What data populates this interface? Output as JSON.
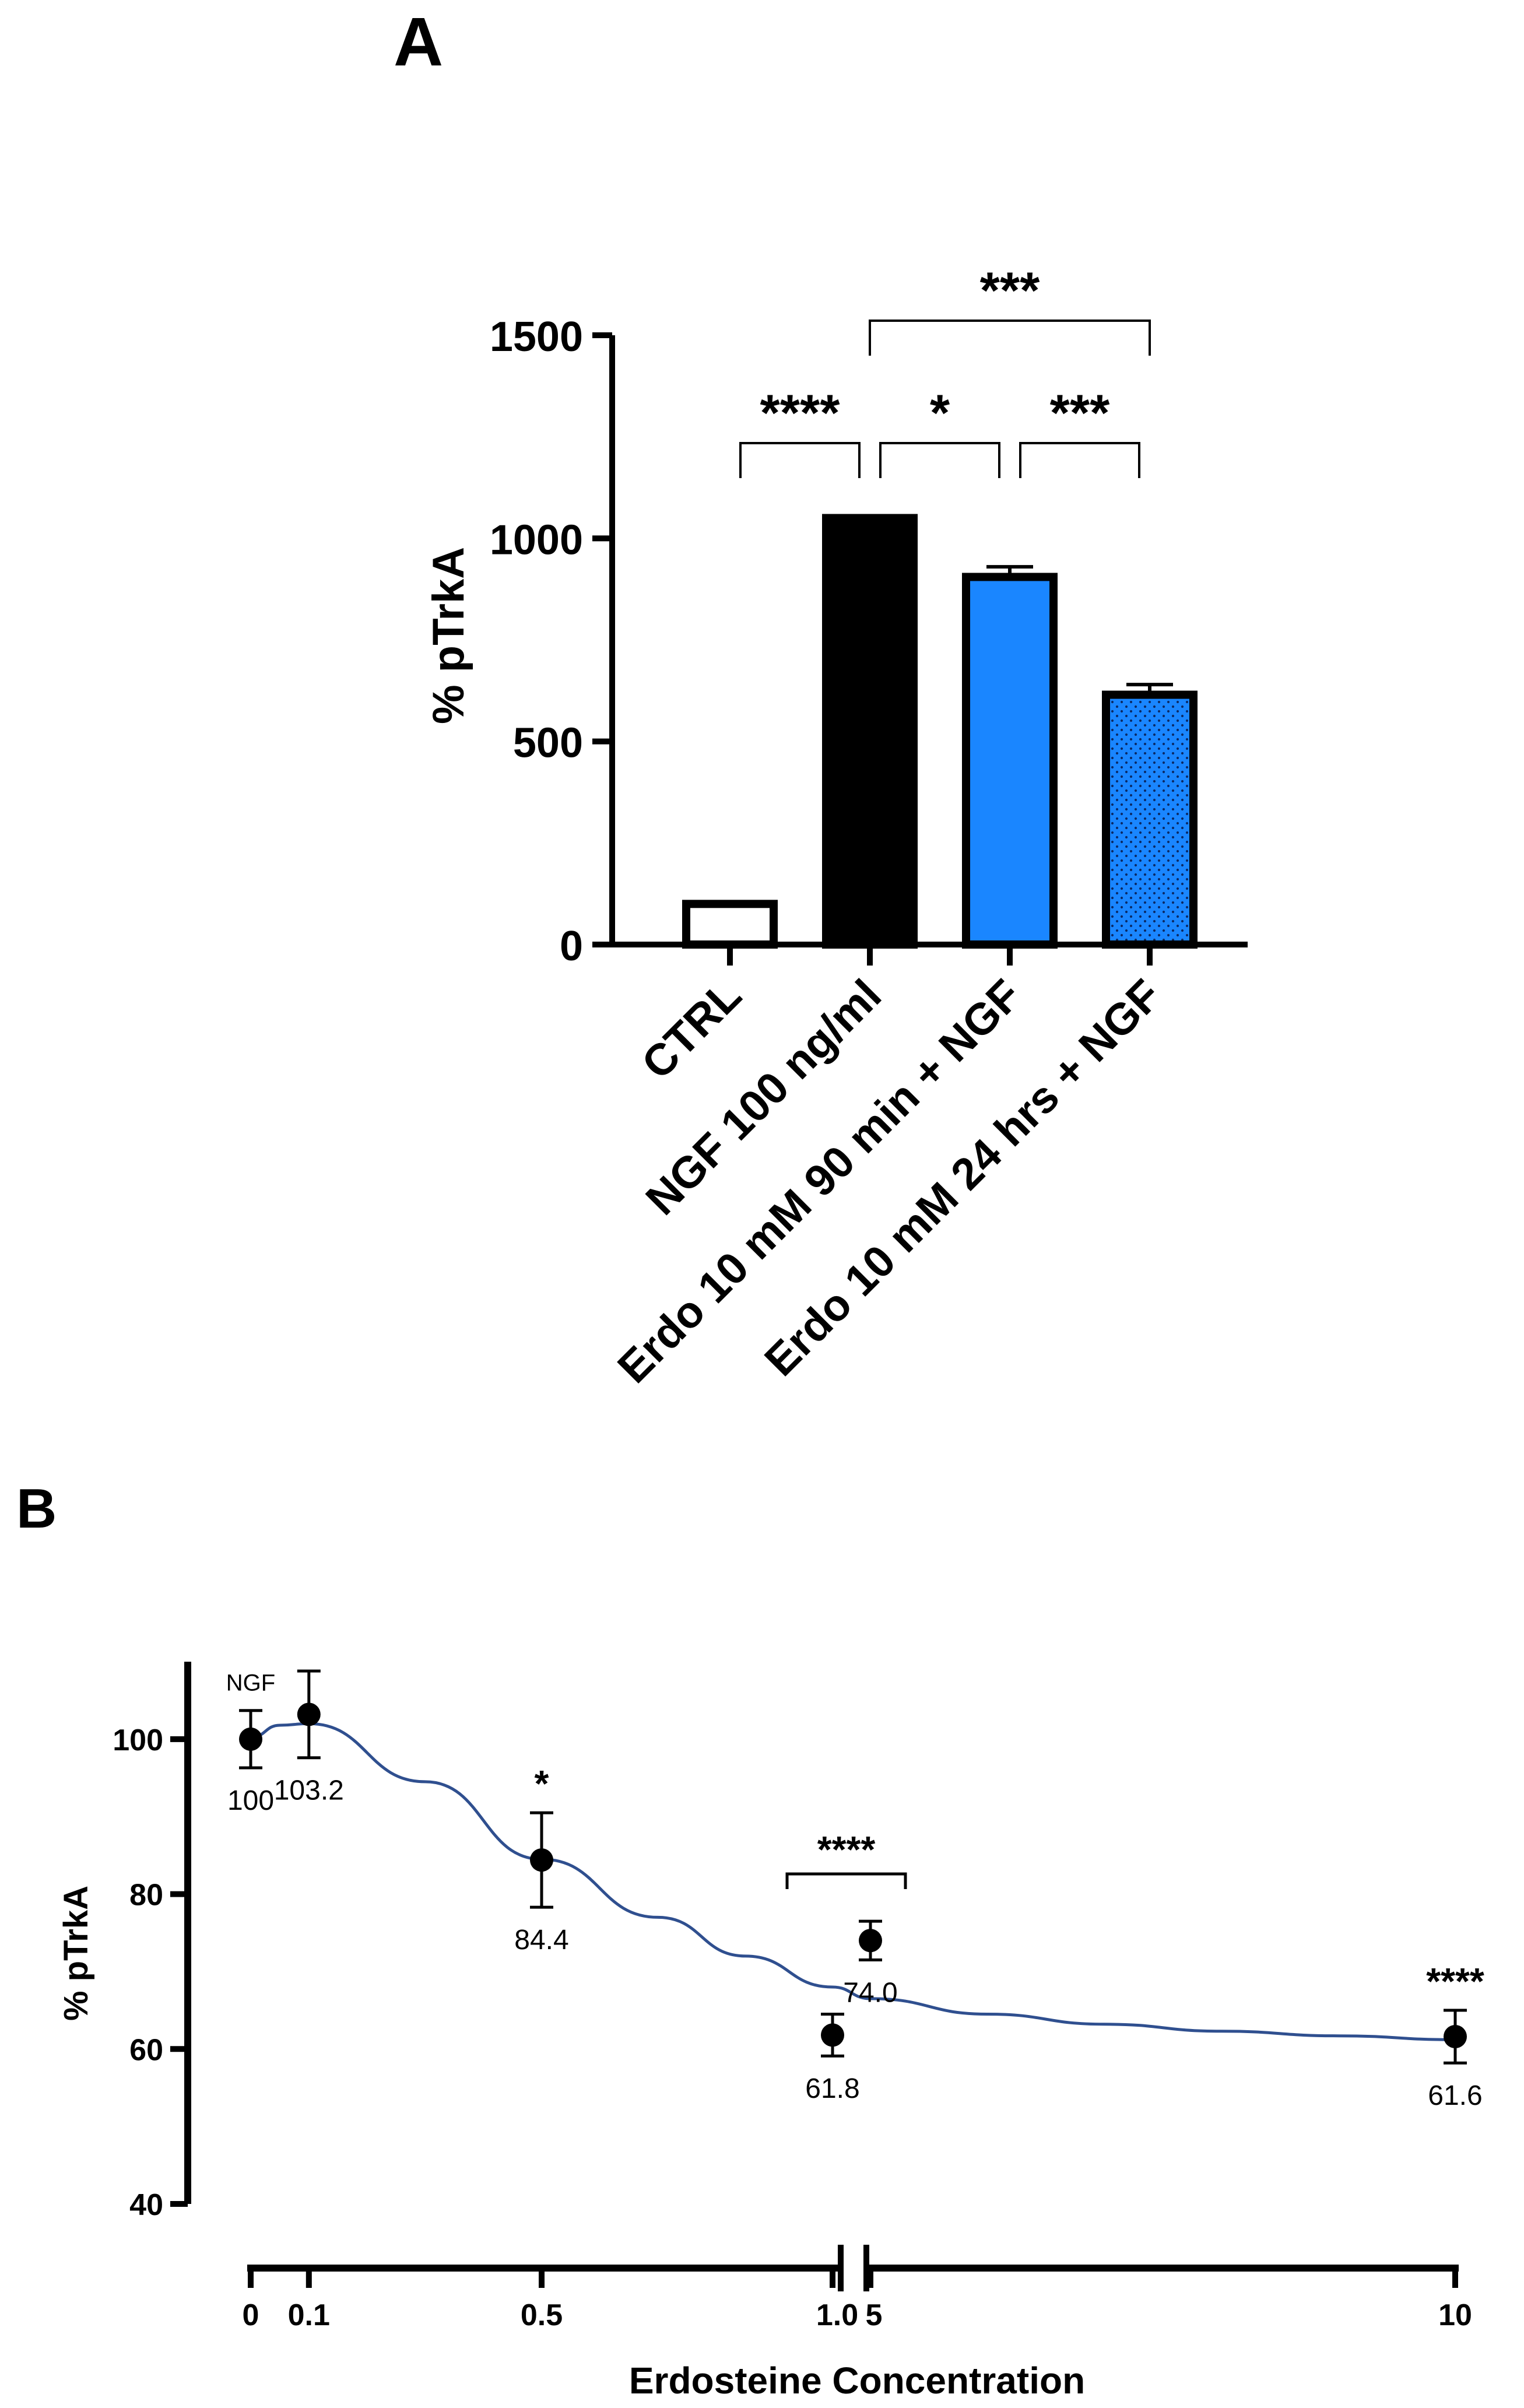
{
  "figure": {
    "background": "#ffffff"
  },
  "chart_data": [
    {
      "panel": "A",
      "type": "bar",
      "ylabel": "% pTrkA",
      "ylim": [
        0,
        1500
      ],
      "yticks": [
        0,
        500,
        1000,
        1500
      ],
      "categories": [
        "CTRL",
        "NGF 100 ng/ml",
        "Erdo 10 mM 90 min + NGF",
        "Erdo 10 mM 24 hrs + NGF"
      ],
      "values": [
        100,
        1050,
        905,
        615
      ],
      "errors": [
        0,
        5,
        25,
        25
      ],
      "fills": [
        "#ffffff",
        "#000000",
        "#1a86ff",
        "#1a86ff"
      ],
      "patterns": [
        "solid",
        "solid",
        "solid",
        "dotted"
      ],
      "significance": [
        {
          "from": 0,
          "to": 1,
          "label": "****",
          "level": 1
        },
        {
          "from": 1,
          "to": 2,
          "label": "*",
          "level": 1
        },
        {
          "from": 2,
          "to": 3,
          "label": "***",
          "level": 1
        },
        {
          "from": 1,
          "to": 3,
          "label": "***",
          "level": 2
        }
      ]
    },
    {
      "panel": "B",
      "type": "scatter",
      "xlabel": "Erdosteine Concentration",
      "ylabel": "% pTrkA",
      "ylim": [
        40,
        110
      ],
      "yticks": [
        40,
        60,
        80,
        100
      ],
      "x_segments": [
        {
          "range": [
            0,
            1.0
          ],
          "ticks": [
            0,
            0.1,
            0.5,
            1.0
          ],
          "tick_labels": [
            "0",
            "0.1",
            "0.5",
            "1.0"
          ]
        },
        {
          "range": [
            5,
            10
          ],
          "ticks": [
            5,
            10
          ],
          "tick_labels": [
            "5",
            "10"
          ]
        }
      ],
      "points": [
        {
          "x": 0,
          "y": 100,
          "err": 3.7,
          "label": "100",
          "top": "NGF"
        },
        {
          "x": 0.1,
          "y": 103.2,
          "err": 5.6,
          "label": "103.2",
          "top": ""
        },
        {
          "x": 0.5,
          "y": 84.4,
          "err": 6.1,
          "label": "84.4",
          "top": "*"
        },
        {
          "x": 1.0,
          "y": 61.8,
          "err": 2.7,
          "label": "61.8",
          "top": ""
        },
        {
          "x": 5,
          "y": 74.0,
          "err": 2.5,
          "label": "74.0",
          "top": ""
        },
        {
          "x": 10,
          "y": 61.6,
          "err": 3.4,
          "label": "61.6",
          "top": "****"
        }
      ],
      "bracket": {
        "from": 3,
        "to": 4,
        "label": "****"
      },
      "curve_color": "#2f4f8f",
      "fit_curve": [
        [
          0,
          100.2
        ],
        [
          0.05,
          101.8
        ],
        [
          0.1,
          102.0
        ],
        [
          0.3,
          94.5
        ],
        [
          0.5,
          84.5
        ],
        [
          0.7,
          77.0
        ],
        [
          0.85,
          72.0
        ],
        [
          1.0,
          68.0
        ],
        [
          5,
          66.5
        ],
        [
          6,
          64.5
        ],
        [
          7,
          63.2
        ],
        [
          8,
          62.3
        ],
        [
          9,
          61.7
        ],
        [
          10,
          61.2
        ]
      ]
    }
  ]
}
